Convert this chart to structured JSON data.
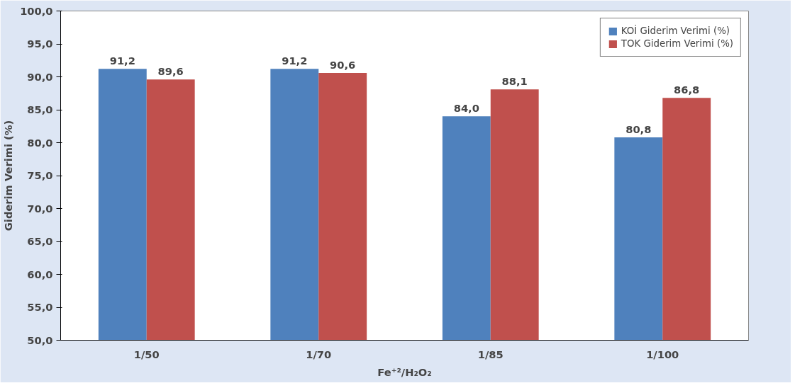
{
  "chart_data": {
    "type": "bar",
    "xlabel": "Fe⁺²/H₂O₂",
    "ylabel": "Giderim Verimi (%)",
    "categories": [
      "1/50",
      "1/70",
      "1/85",
      "1/100"
    ],
    "series": [
      {
        "name": "KOİ Giderim Verimi (%)",
        "color": "#4f81bd",
        "values": [
          91.2,
          91.2,
          84.0,
          80.8
        ],
        "value_labels": [
          "91,2",
          "91,2",
          "84,0",
          "80,8"
        ]
      },
      {
        "name": "TOK Giderim Verimi (%)",
        "color": "#c0504d",
        "values": [
          89.6,
          90.6,
          88.1,
          86.8
        ],
        "value_labels": [
          "89,6",
          "90,6",
          "88,1",
          "86,8"
        ]
      }
    ],
    "ylim": [
      50,
      100
    ],
    "yticks": [
      {
        "value": 50,
        "label": "50,0"
      },
      {
        "value": 55,
        "label": "55,0"
      },
      {
        "value": 60,
        "label": "60,0"
      },
      {
        "value": 65,
        "label": "65,0"
      },
      {
        "value": 70,
        "label": "70,0"
      },
      {
        "value": 75,
        "label": "75,0"
      },
      {
        "value": 80,
        "label": "80,0"
      },
      {
        "value": 85,
        "label": "85,0"
      },
      {
        "value": 90,
        "label": "90,0"
      },
      {
        "value": 95,
        "label": "95,0"
      },
      {
        "value": 100,
        "label": "100,0"
      }
    ],
    "grid": false,
    "legend": "top right"
  }
}
